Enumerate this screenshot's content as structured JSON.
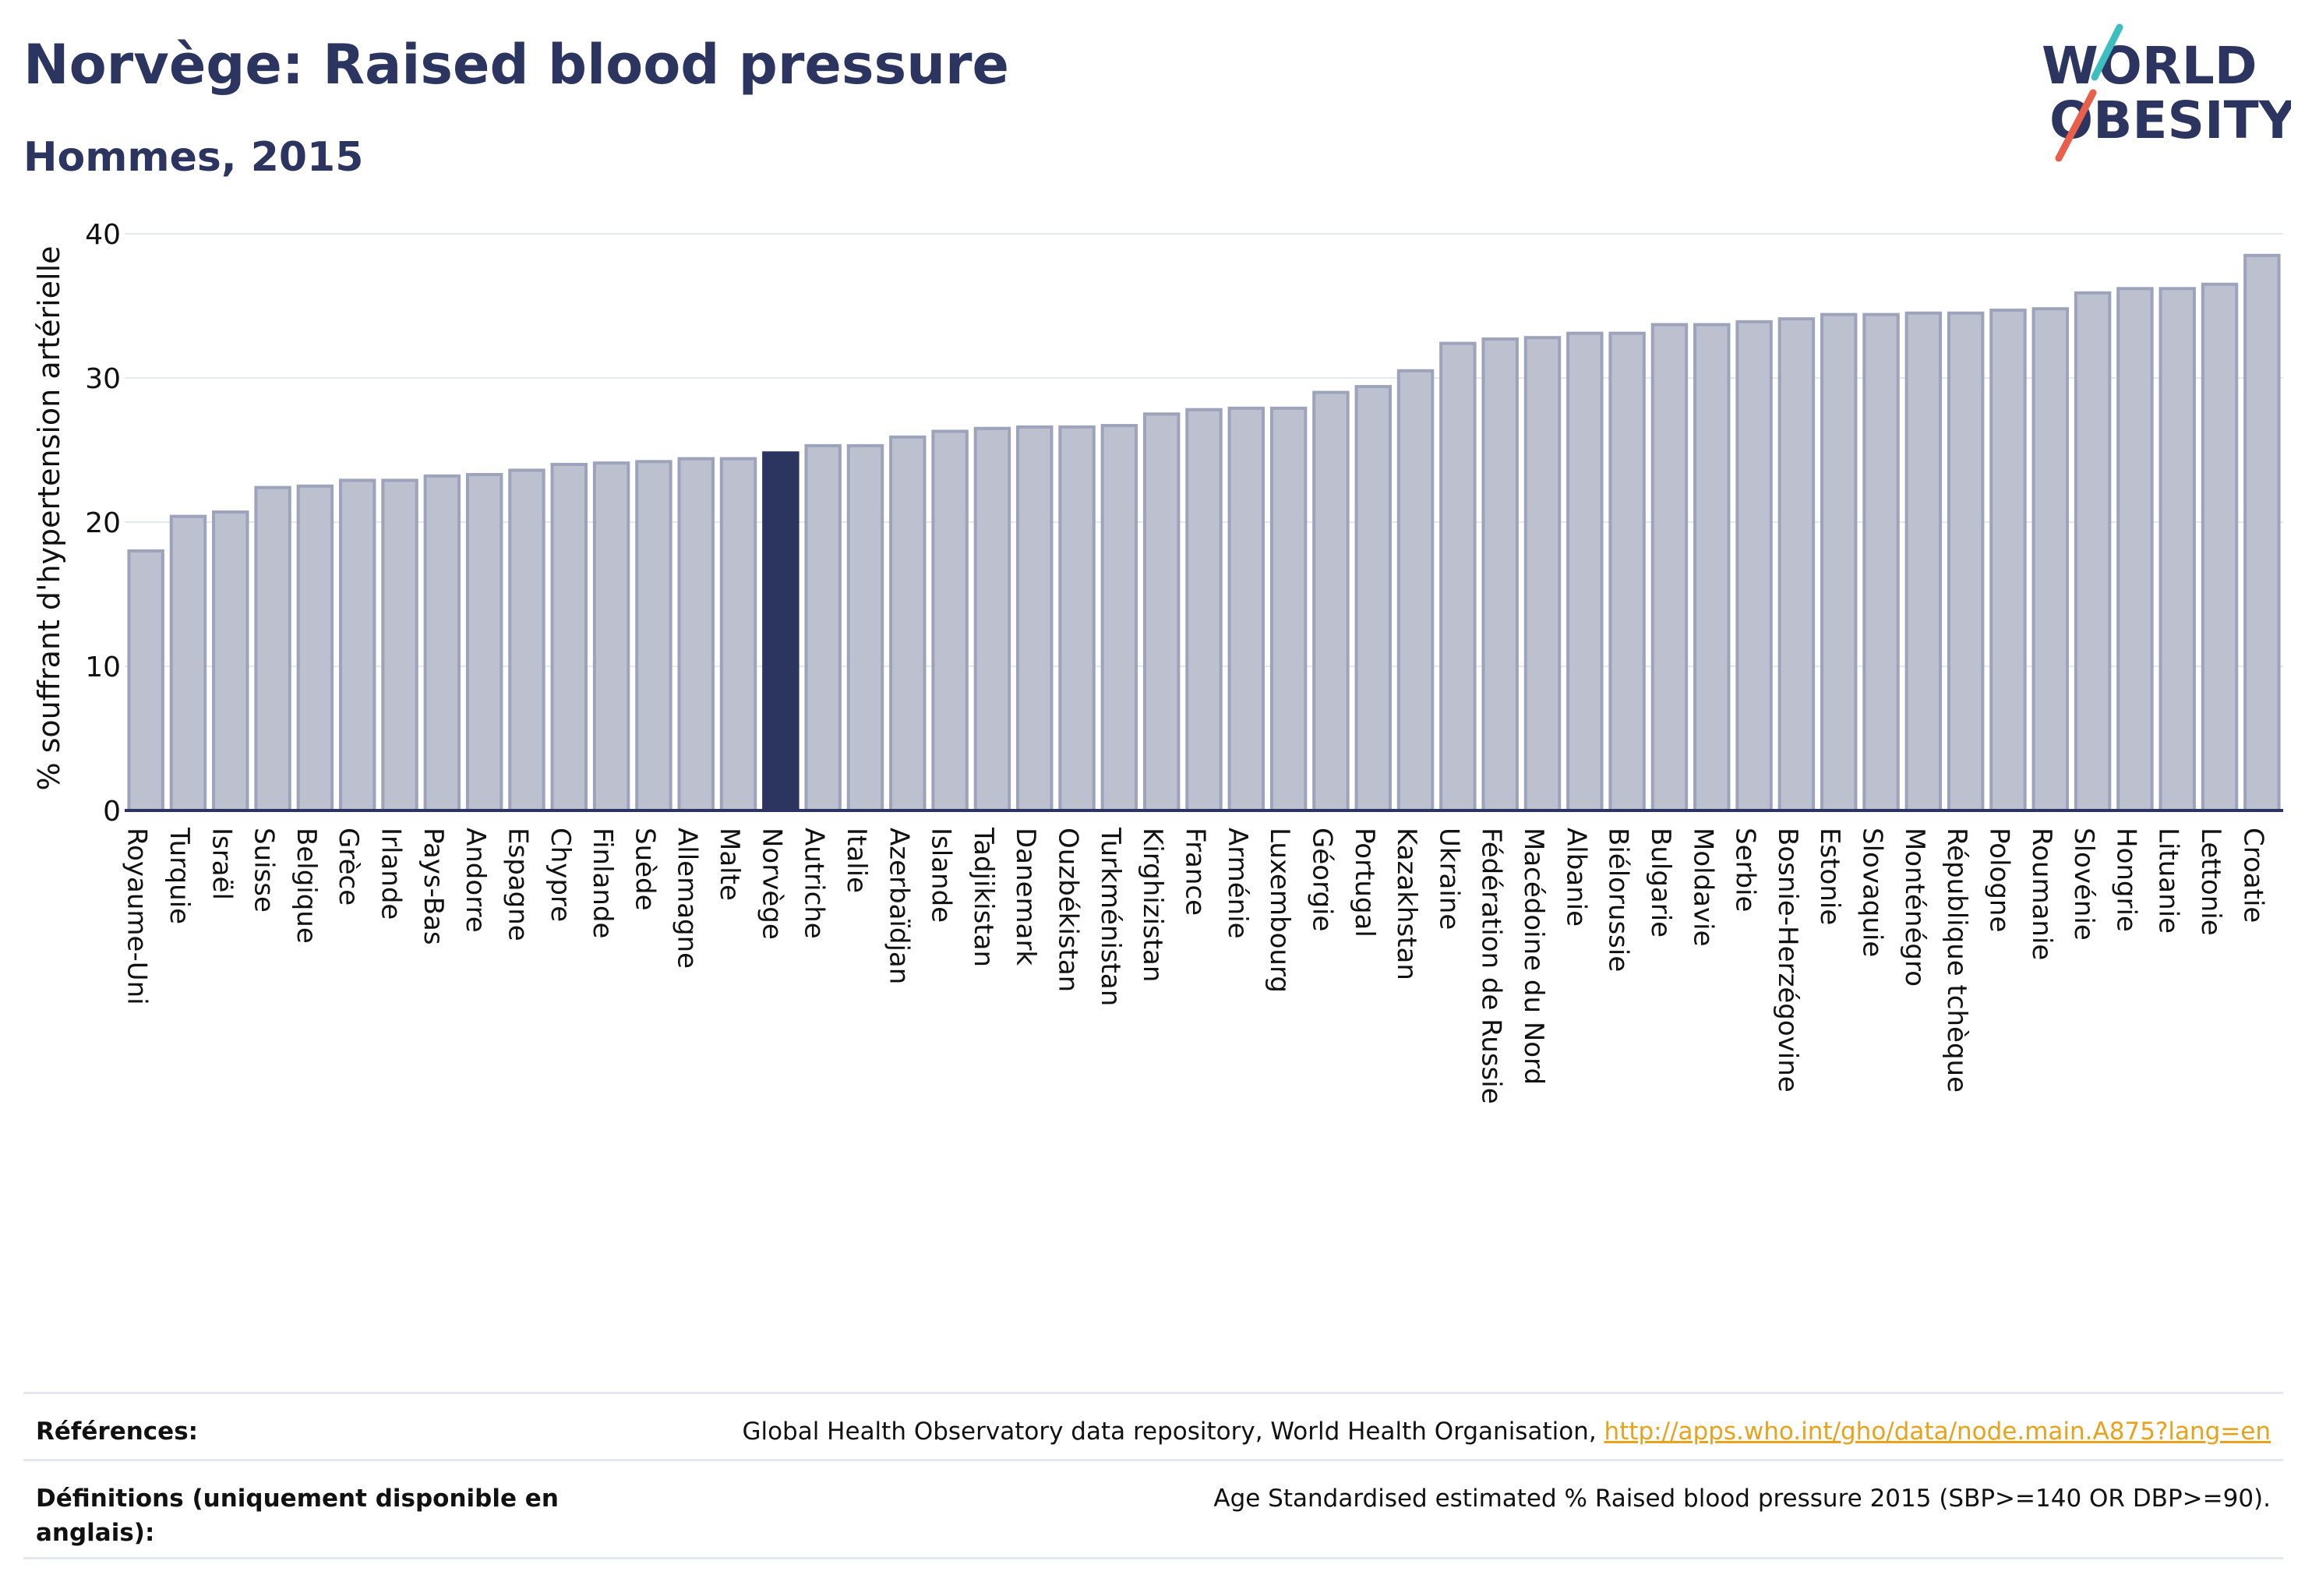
{
  "header": {
    "title": "Norvège: Raised blood pressure",
    "subtitle": "Hommes, 2015"
  },
  "logo": {
    "line1": "WORLD",
    "line2": "OBESITY",
    "colors": {
      "navy": "#2b3560",
      "teal": "#3ebfbf",
      "coral": "#e8604c"
    }
  },
  "chart_data": {
    "type": "bar",
    "ylabel": "% souffrant d'hypertension artérielle",
    "ylim": [
      0,
      40
    ],
    "yticks": [
      0,
      10,
      20,
      30,
      40
    ],
    "grid": true,
    "highlight": "Norvège",
    "colors": {
      "bar": "#bcc0cf",
      "bar_edge": "#9da3ba",
      "highlight": "#2b3560",
      "grid": "#e6e8ef",
      "axis": "#2b3560"
    },
    "categories": [
      "Royaume-Uni",
      "Turquie",
      "Israël",
      "Suisse",
      "Belgique",
      "Grèce",
      "Irlande",
      "Pays-Bas",
      "Andorre",
      "Espagne",
      "Chypre",
      "Finlande",
      "Suède",
      "Allemagne",
      "Malte",
      "Norvège",
      "Autriche",
      "Italie",
      "Azerbaïdjan",
      "Islande",
      "Tadjikistan",
      "Danemark",
      "Ouzbékistan",
      "Turkménistan",
      "Kirghizistan",
      "France",
      "Arménie",
      "Luxembourg",
      "Géorgie",
      "Portugal",
      "Kazakhstan",
      "Ukraine",
      "Fédération de Russie",
      "Macédoine du Nord",
      "Albanie",
      "Biélorussie",
      "Bulgarie",
      "Moldavie",
      "Serbie",
      "Bosnie-Herzégovine",
      "Estonie",
      "Slovaquie",
      "Monténégro",
      "République tchèque",
      "Pologne",
      "Roumanie",
      "Slovénie",
      "Hongrie",
      "Lituanie",
      "Lettonie",
      "Croatie"
    ],
    "values": [
      18.0,
      20.4,
      20.7,
      22.4,
      22.5,
      22.9,
      22.9,
      23.2,
      23.3,
      23.6,
      24.0,
      24.1,
      24.2,
      24.4,
      24.4,
      24.8,
      25.3,
      25.3,
      25.9,
      26.3,
      26.5,
      26.6,
      26.6,
      26.7,
      27.5,
      27.8,
      27.9,
      27.9,
      29.0,
      29.4,
      30.5,
      32.4,
      32.7,
      32.8,
      33.1,
      33.1,
      33.7,
      33.7,
      33.9,
      34.1,
      34.4,
      34.4,
      34.5,
      34.5,
      34.7,
      34.8,
      35.9,
      36.2,
      36.2,
      36.5,
      38.5
    ]
  },
  "footer": {
    "references_label": "Références:",
    "references_text": "Global Health Observatory data repository, World Health Organisation, ",
    "references_link": "http://apps.who.int/gho/data/node.main.A875?lang=en",
    "definitions_label": "Définitions (uniquement disponible en anglais):",
    "definitions_text": "Age Standardised estimated % Raised blood pressure 2015 (SBP>=140 OR DBP>=90)."
  }
}
